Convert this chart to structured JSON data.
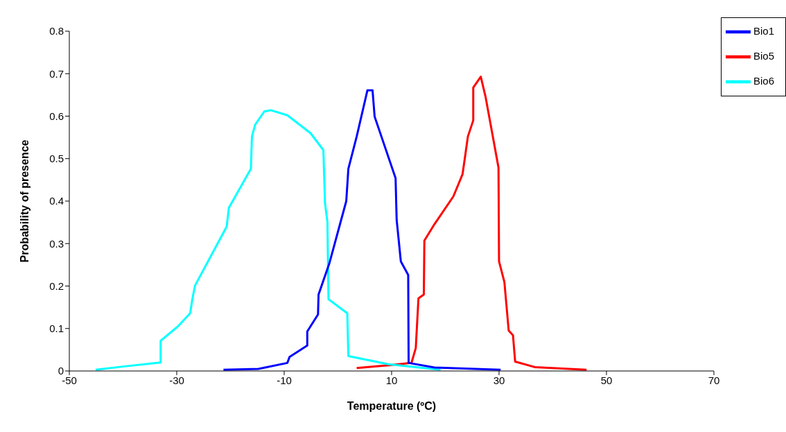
{
  "chart_data": {
    "type": "line",
    "xlabel": "Temperature (ºC)",
    "ylabel": "Probability of presence",
    "xlim": [
      -50,
      70
    ],
    "xticks": [
      -50,
      -30,
      -10,
      10,
      30,
      50,
      70
    ],
    "ylim": [
      0,
      0.8
    ],
    "yticks": [
      0,
      0.1,
      0.2,
      0.3,
      0.4,
      0.5,
      0.6,
      0.7,
      0.8
    ],
    "grid": false,
    "legend": "top right",
    "marker": "none",
    "line_style": "solid",
    "series": [
      {
        "name": "Bio5",
        "color": "#ff0000",
        "x": [
          3.5,
          9.8,
          13.7,
          14.5,
          15.0,
          16.0,
          16.1,
          18.0,
          21.5,
          23.2,
          23.6,
          24.2,
          25.2,
          25.2,
          26.6,
          27.5,
          29.9,
          30.0,
          31.0,
          31.8,
          32.6,
          33.0,
          36.7,
          46.3
        ],
        "values": [
          0.007,
          0.014,
          0.019,
          0.054,
          0.171,
          0.18,
          0.307,
          0.346,
          0.411,
          0.463,
          0.498,
          0.552,
          0.59,
          0.667,
          0.693,
          0.645,
          0.479,
          0.258,
          0.209,
          0.095,
          0.084,
          0.022,
          0.009,
          0.003
        ]
      },
      {
        "name": "Bio6",
        "color": "#00ffff",
        "x": [
          -45.1,
          -40.3,
          -33.0,
          -33.0,
          -29.7,
          -27.5,
          -27.1,
          -26.6,
          -20.7,
          -20.3,
          -16.2,
          -16.0,
          -15.4,
          -13.7,
          -12.5,
          -9.4,
          -5.1,
          -2.7,
          -2.4,
          -1.95,
          -1.75,
          1.75,
          1.95,
          9.4,
          19.1
        ],
        "values": [
          0.003,
          0.01,
          0.02,
          0.071,
          0.106,
          0.136,
          0.169,
          0.201,
          0.34,
          0.384,
          0.476,
          0.552,
          0.58,
          0.611,
          0.614,
          0.602,
          0.56,
          0.52,
          0.395,
          0.351,
          0.169,
          0.136,
          0.035,
          0.016,
          0.003
        ]
      },
      {
        "name": "Bio1",
        "color": "#0000ff",
        "x": [
          -21.3,
          -14.8,
          -9.4,
          -9.0,
          -5.7,
          -5.7,
          -3.7,
          -3.6,
          -1.6,
          1.56,
          1.95,
          3.5,
          5.5,
          6.45,
          6.84,
          10.74,
          10.94,
          11.72,
          13.09,
          13.17,
          18.0,
          30.3
        ],
        "values": [
          0.003,
          0.005,
          0.019,
          0.033,
          0.06,
          0.093,
          0.133,
          0.18,
          0.253,
          0.4,
          0.476,
          0.552,
          0.661,
          0.661,
          0.599,
          0.454,
          0.356,
          0.258,
          0.226,
          0.019,
          0.008,
          0.003
        ]
      }
    ]
  }
}
